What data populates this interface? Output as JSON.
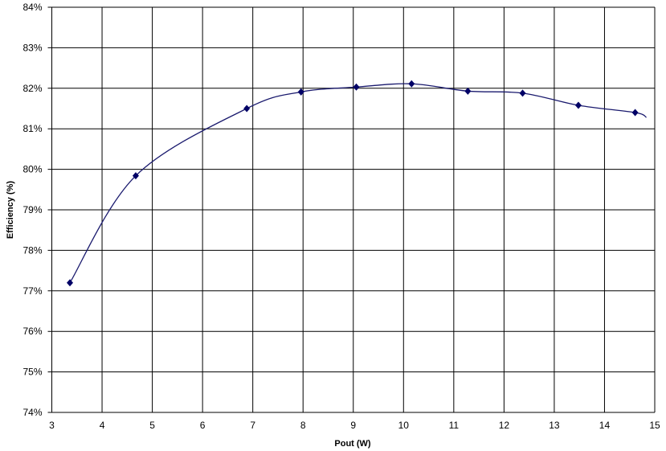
{
  "chart_data": {
    "type": "line",
    "title": "",
    "xlabel": "Pout (W)",
    "ylabel": "Efficiency (%)",
    "xlim": [
      3,
      15
    ],
    "ylim": [
      74,
      84
    ],
    "x_ticks": [
      "3",
      "4",
      "5",
      "6",
      "7",
      "8",
      "9",
      "10",
      "11",
      "12",
      "13",
      "14",
      "15"
    ],
    "y_ticks": [
      "74%",
      "75%",
      "76%",
      "77%",
      "78%",
      "79%",
      "80%",
      "81%",
      "82%",
      "83%",
      "84%"
    ],
    "grid": true,
    "smoothed": true,
    "marker": "diamond",
    "line_color": "#1a1a6e",
    "marker_color": "#000066",
    "series": [
      {
        "x": [
          3.36,
          4.67,
          6.88,
          7.96,
          9.06,
          10.16,
          11.28,
          12.37,
          13.48,
          14.61
        ],
        "y": [
          77.2,
          79.84,
          81.5,
          81.91,
          82.03,
          82.11,
          81.93,
          81.88,
          81.58,
          81.4
        ]
      }
    ]
  }
}
